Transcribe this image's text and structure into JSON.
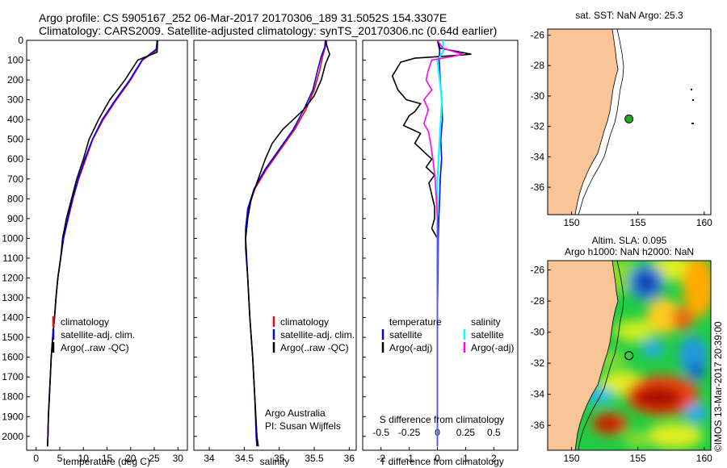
{
  "header": {
    "line1": "Argo profile: CS 5905167_252 06-Mar-2017 20170306_189 31.5052S 154.3307E",
    "line2": "Climatology: CARS2009. Satellite-adjusted climatology: synTS_20170306.nc (0.64d earlier)"
  },
  "colors": {
    "climatology": "#ff0000",
    "satellite": "#0000ff",
    "argo": "#000000",
    "salinity_satellite": "#00ffff",
    "salinity_argo": "#ff00ff",
    "land": "#f9c596"
  },
  "depth_axis": {
    "ticks": [
      0,
      100,
      200,
      300,
      400,
      500,
      600,
      700,
      800,
      900,
      1000,
      1100,
      1200,
      1300,
      1400,
      1500,
      1600,
      1700,
      1800,
      1900,
      2000
    ],
    "range": [
      0,
      2070
    ]
  },
  "temperature_panel": {
    "xlabel": "temperature (deg C)",
    "xticks": [
      0,
      5,
      10,
      15,
      20,
      25,
      30
    ],
    "xrange": [
      -2,
      32
    ],
    "legend": [
      "climatology",
      "satellite-adj. clim.",
      "Argo(..raw -QC)"
    ]
  },
  "salinity_panel": {
    "xlabel": "salinity",
    "xticks": [
      34,
      34.5,
      35,
      35.5,
      36
    ],
    "xrange": [
      33.78,
      36.1
    ],
    "legend": [
      "climatology",
      "satellite-adj. clim.",
      "Argo(..raw -QC)"
    ],
    "credit1": "Argo Australia",
    "credit2": "PI: Susan Wijffels"
  },
  "difference_panel": {
    "xlabel": "T difference from climatology",
    "top_label": "S difference from climatology",
    "t_ticks": [
      -2,
      -1,
      0,
      1,
      2
    ],
    "s_ticks": [
      "-0.5",
      "-0.25",
      "0",
      "0.25",
      "0.5"
    ],
    "xrange": [
      -2.65,
      2.85
    ],
    "legend_temperature_title": "temperature",
    "legend_salinity_title": "salinity",
    "legend_satellite": "satellite",
    "legend_argo": "Argo(-adj)"
  },
  "chart_data": [
    {
      "type": "line",
      "title": "",
      "xlabel": "temperature (deg C)",
      "ylabel": "",
      "series": [
        {
          "name": "climatology",
          "points": [
            [
              25.6,
              0
            ],
            [
              25.5,
              50
            ],
            [
              22.5,
              100
            ],
            [
              20,
              200
            ],
            [
              17,
              300
            ],
            [
              14.2,
              400
            ],
            [
              12,
              500
            ],
            [
              10.5,
              600
            ],
            [
              9,
              700
            ],
            [
              7.8,
              800
            ],
            [
              6.8,
              900
            ],
            [
              5.8,
              1000
            ],
            [
              5.2,
              1100
            ],
            [
              4.6,
              1200
            ],
            [
              4.2,
              1300
            ],
            [
              3.9,
              1400
            ],
            [
              3.5,
              1500
            ],
            [
              3.2,
              1600
            ],
            [
              3,
              1700
            ],
            [
              2.8,
              1800
            ],
            [
              2.6,
              1900
            ],
            [
              2.5,
              2000
            ],
            [
              2.4,
              2050
            ]
          ]
        },
        {
          "name": "satellite-adj. clim.",
          "points": [
            [
              25.6,
              0
            ],
            [
              25.4,
              45
            ],
            [
              22.4,
              100
            ],
            [
              19.8,
              200
            ],
            [
              16.8,
              300
            ],
            [
              14,
              400
            ],
            [
              11.9,
              500
            ],
            [
              10.3,
              600
            ],
            [
              8.9,
              700
            ],
            [
              7.7,
              800
            ],
            [
              6.7,
              900
            ],
            [
              5.8,
              1000
            ],
            [
              5.2,
              1100
            ],
            [
              4.6,
              1200
            ],
            [
              4.2,
              1300
            ],
            [
              3.9,
              1400
            ],
            [
              3.5,
              1500
            ],
            [
              3.2,
              1600
            ],
            [
              3,
              1700
            ],
            [
              2.8,
              1800
            ],
            [
              2.6,
              1900
            ],
            [
              2.5,
              2000
            ],
            [
              2.4,
              2050
            ]
          ]
        },
        {
          "name": "Argo(..raw -QC)",
          "points": [
            [
              25.7,
              0
            ],
            [
              25.6,
              60
            ],
            [
              21.5,
              100
            ],
            [
              18.8,
              200
            ],
            [
              15.6,
              300
            ],
            [
              13.2,
              400
            ],
            [
              11.2,
              500
            ],
            [
              10,
              600
            ],
            [
              8.6,
              700
            ],
            [
              7.5,
              800
            ],
            [
              6.4,
              900
            ],
            [
              5.6,
              1000
            ],
            [
              5.2,
              1100
            ],
            [
              4.6,
              1200
            ],
            [
              4.2,
              1300
            ],
            [
              3.9,
              1400
            ],
            [
              3.5,
              1500
            ],
            [
              3.2,
              1600
            ],
            [
              3,
              1700
            ],
            [
              2.8,
              1800
            ],
            [
              2.6,
              1900
            ],
            [
              2.5,
              2000
            ],
            [
              2.4,
              2050
            ]
          ]
        }
      ]
    },
    {
      "type": "line",
      "title": "",
      "xlabel": "salinity",
      "ylabel": "",
      "series": [
        {
          "name": "climatology",
          "points": [
            [
              35.68,
              0
            ],
            [
              35.66,
              30
            ],
            [
              35.62,
              80
            ],
            [
              35.58,
              150
            ],
            [
              35.5,
              250
            ],
            [
              35.38,
              350
            ],
            [
              35.22,
              450
            ],
            [
              35.02,
              550
            ],
            [
              34.82,
              650
            ],
            [
              34.65,
              750
            ],
            [
              34.56,
              850
            ],
            [
              34.52,
              950
            ],
            [
              34.52,
              1050
            ],
            [
              34.55,
              1200
            ],
            [
              34.58,
              1400
            ],
            [
              34.62,
              1600
            ],
            [
              34.65,
              1800
            ],
            [
              34.68,
              2000
            ],
            [
              34.7,
              2050
            ]
          ]
        },
        {
          "name": "satellite-adj. clim.",
          "points": [
            [
              35.66,
              0
            ],
            [
              35.65,
              35
            ],
            [
              35.6,
              80
            ],
            [
              35.55,
              150
            ],
            [
              35.48,
              250
            ],
            [
              35.35,
              350
            ],
            [
              35.2,
              450
            ],
            [
              35,
              550
            ],
            [
              34.8,
              650
            ],
            [
              34.64,
              750
            ],
            [
              34.55,
              850
            ],
            [
              34.52,
              950
            ],
            [
              34.52,
              1050
            ],
            [
              34.55,
              1200
            ],
            [
              34.58,
              1400
            ],
            [
              34.62,
              1600
            ],
            [
              34.65,
              1800
            ],
            [
              34.67,
              2000
            ],
            [
              34.68,
              2050
            ]
          ]
        },
        {
          "name": "Argo(..raw -QC)",
          "points": [
            [
              35.66,
              0
            ],
            [
              35.7,
              50
            ],
            [
              35.72,
              70
            ],
            [
              35.66,
              120
            ],
            [
              35.6,
              200
            ],
            [
              35.5,
              280
            ],
            [
              35.35,
              350
            ],
            [
              35.2,
              400
            ],
            [
              35.05,
              450
            ],
            [
              34.9,
              520
            ],
            [
              34.8,
              600
            ],
            [
              34.7,
              700
            ],
            [
              34.6,
              800
            ],
            [
              34.55,
              900
            ],
            [
              34.52,
              1000
            ],
            [
              34.55,
              1200
            ],
            [
              34.58,
              1400
            ],
            [
              34.62,
              1600
            ],
            [
              34.65,
              1800
            ],
            [
              34.68,
              2000
            ],
            [
              34.7,
              2050
            ]
          ]
        }
      ]
    },
    {
      "type": "line",
      "title": "",
      "xlabel": "T difference from climatology",
      "ylabel": "",
      "series": [
        {
          "name": "temperature satellite",
          "points": [
            [
              0,
              0
            ],
            [
              0.08,
              50
            ],
            [
              0.06,
              100
            ],
            [
              0.1,
              200
            ],
            [
              0.15,
              300
            ],
            [
              0.18,
              400
            ],
            [
              0.12,
              500
            ],
            [
              0.15,
              600
            ],
            [
              0.1,
              700
            ],
            [
              0.08,
              800
            ],
            [
              0.05,
              900
            ],
            [
              0.03,
              1000
            ],
            [
              0.02,
              1200
            ],
            [
              0,
              1400
            ],
            [
              0,
              1600
            ],
            [
              0,
              1800
            ],
            [
              0,
              2000
            ],
            [
              0,
              2050
            ]
          ]
        },
        {
          "name": "temperature Argo(-adj)",
          "points": [
            [
              0,
              0
            ],
            [
              0.1,
              40
            ],
            [
              1.2,
              70
            ],
            [
              0.3,
              80
            ],
            [
              -0.8,
              90
            ],
            [
              -1.3,
              110
            ],
            [
              -1.6,
              180
            ],
            [
              -1.4,
              250
            ],
            [
              -1.1,
              300
            ],
            [
              -0.6,
              320
            ],
            [
              -0.8,
              360
            ],
            [
              -1,
              380
            ],
            [
              -1.2,
              430
            ],
            [
              -0.6,
              470
            ],
            [
              -0.8,
              520
            ],
            [
              -0.5,
              560
            ],
            [
              -0.2,
              600
            ],
            [
              -0.4,
              640
            ],
            [
              -0.1,
              680
            ],
            [
              -0.3,
              720
            ],
            [
              -0.2,
              780
            ],
            [
              -0.1,
              840
            ],
            [
              -0.1,
              900
            ],
            [
              -0.2,
              950
            ],
            [
              0,
              1000
            ],
            [
              0,
              1200
            ],
            [
              0,
              1400
            ],
            [
              0,
              1600
            ],
            [
              0,
              1800
            ],
            [
              0,
              2000
            ],
            [
              0,
              2050
            ]
          ]
        },
        {
          "name": "salinity satellite",
          "points": [
            [
              0.05,
              0
            ],
            [
              0.05,
              60
            ],
            [
              0,
              100
            ],
            [
              0.02,
              200
            ],
            [
              0.04,
              300
            ],
            [
              0.03,
              400
            ],
            [
              0.02,
              500
            ],
            [
              0.01,
              600
            ],
            [
              0,
              700
            ],
            [
              0,
              800
            ],
            [
              0,
              900
            ],
            [
              0,
              1000
            ],
            [
              0,
              1200
            ],
            [
              0,
              1400
            ],
            [
              0,
              1600
            ],
            [
              0,
              1800
            ],
            [
              0,
              2000
            ],
            [
              0,
              2050
            ]
          ]
        },
        {
          "name": "salinity Argo(-adj)",
          "points": [
            [
              0,
              0
            ],
            [
              0.05,
              40
            ],
            [
              0.22,
              70
            ],
            [
              0.15,
              80
            ],
            [
              -0.05,
              100
            ],
            [
              -0.08,
              150
            ],
            [
              -0.1,
              200
            ],
            [
              -0.05,
              250
            ],
            [
              -0.12,
              300
            ],
            [
              -0.08,
              350
            ],
            [
              -0.12,
              420
            ],
            [
              -0.08,
              460
            ],
            [
              -0.06,
              520
            ],
            [
              -0.04,
              600
            ],
            [
              -0.02,
              700
            ],
            [
              -0.01,
              800
            ],
            [
              0,
              900
            ],
            [
              0,
              1000
            ],
            [
              0,
              1200
            ],
            [
              0,
              1400
            ],
            [
              0,
              1600
            ],
            [
              0,
              1800
            ],
            [
              0,
              2000
            ],
            [
              0,
              2050
            ]
          ]
        }
      ]
    }
  ],
  "sst_map": {
    "title": "sat. SST: NaN Argo: 25.3",
    "lon_ticks": [
      150,
      155,
      160
    ],
    "lat_ticks": [
      -26,
      -28,
      -30,
      -32,
      -34,
      -36
    ],
    "profile_lon": 154.33,
    "profile_lat": -31.51
  },
  "sla_map": {
    "title1": "Altim. SLA: 0.095",
    "title2": "Argo h1000: NaN h2000: NaN",
    "lon_ticks": [
      150,
      155,
      160
    ],
    "lat_ticks": [
      -26,
      -28,
      -30,
      -32,
      -34,
      -36
    ],
    "profile_lon": 154.33,
    "profile_lat": -31.51,
    "credit": "©IMOS 13-Mar-2017 20:39:00"
  }
}
